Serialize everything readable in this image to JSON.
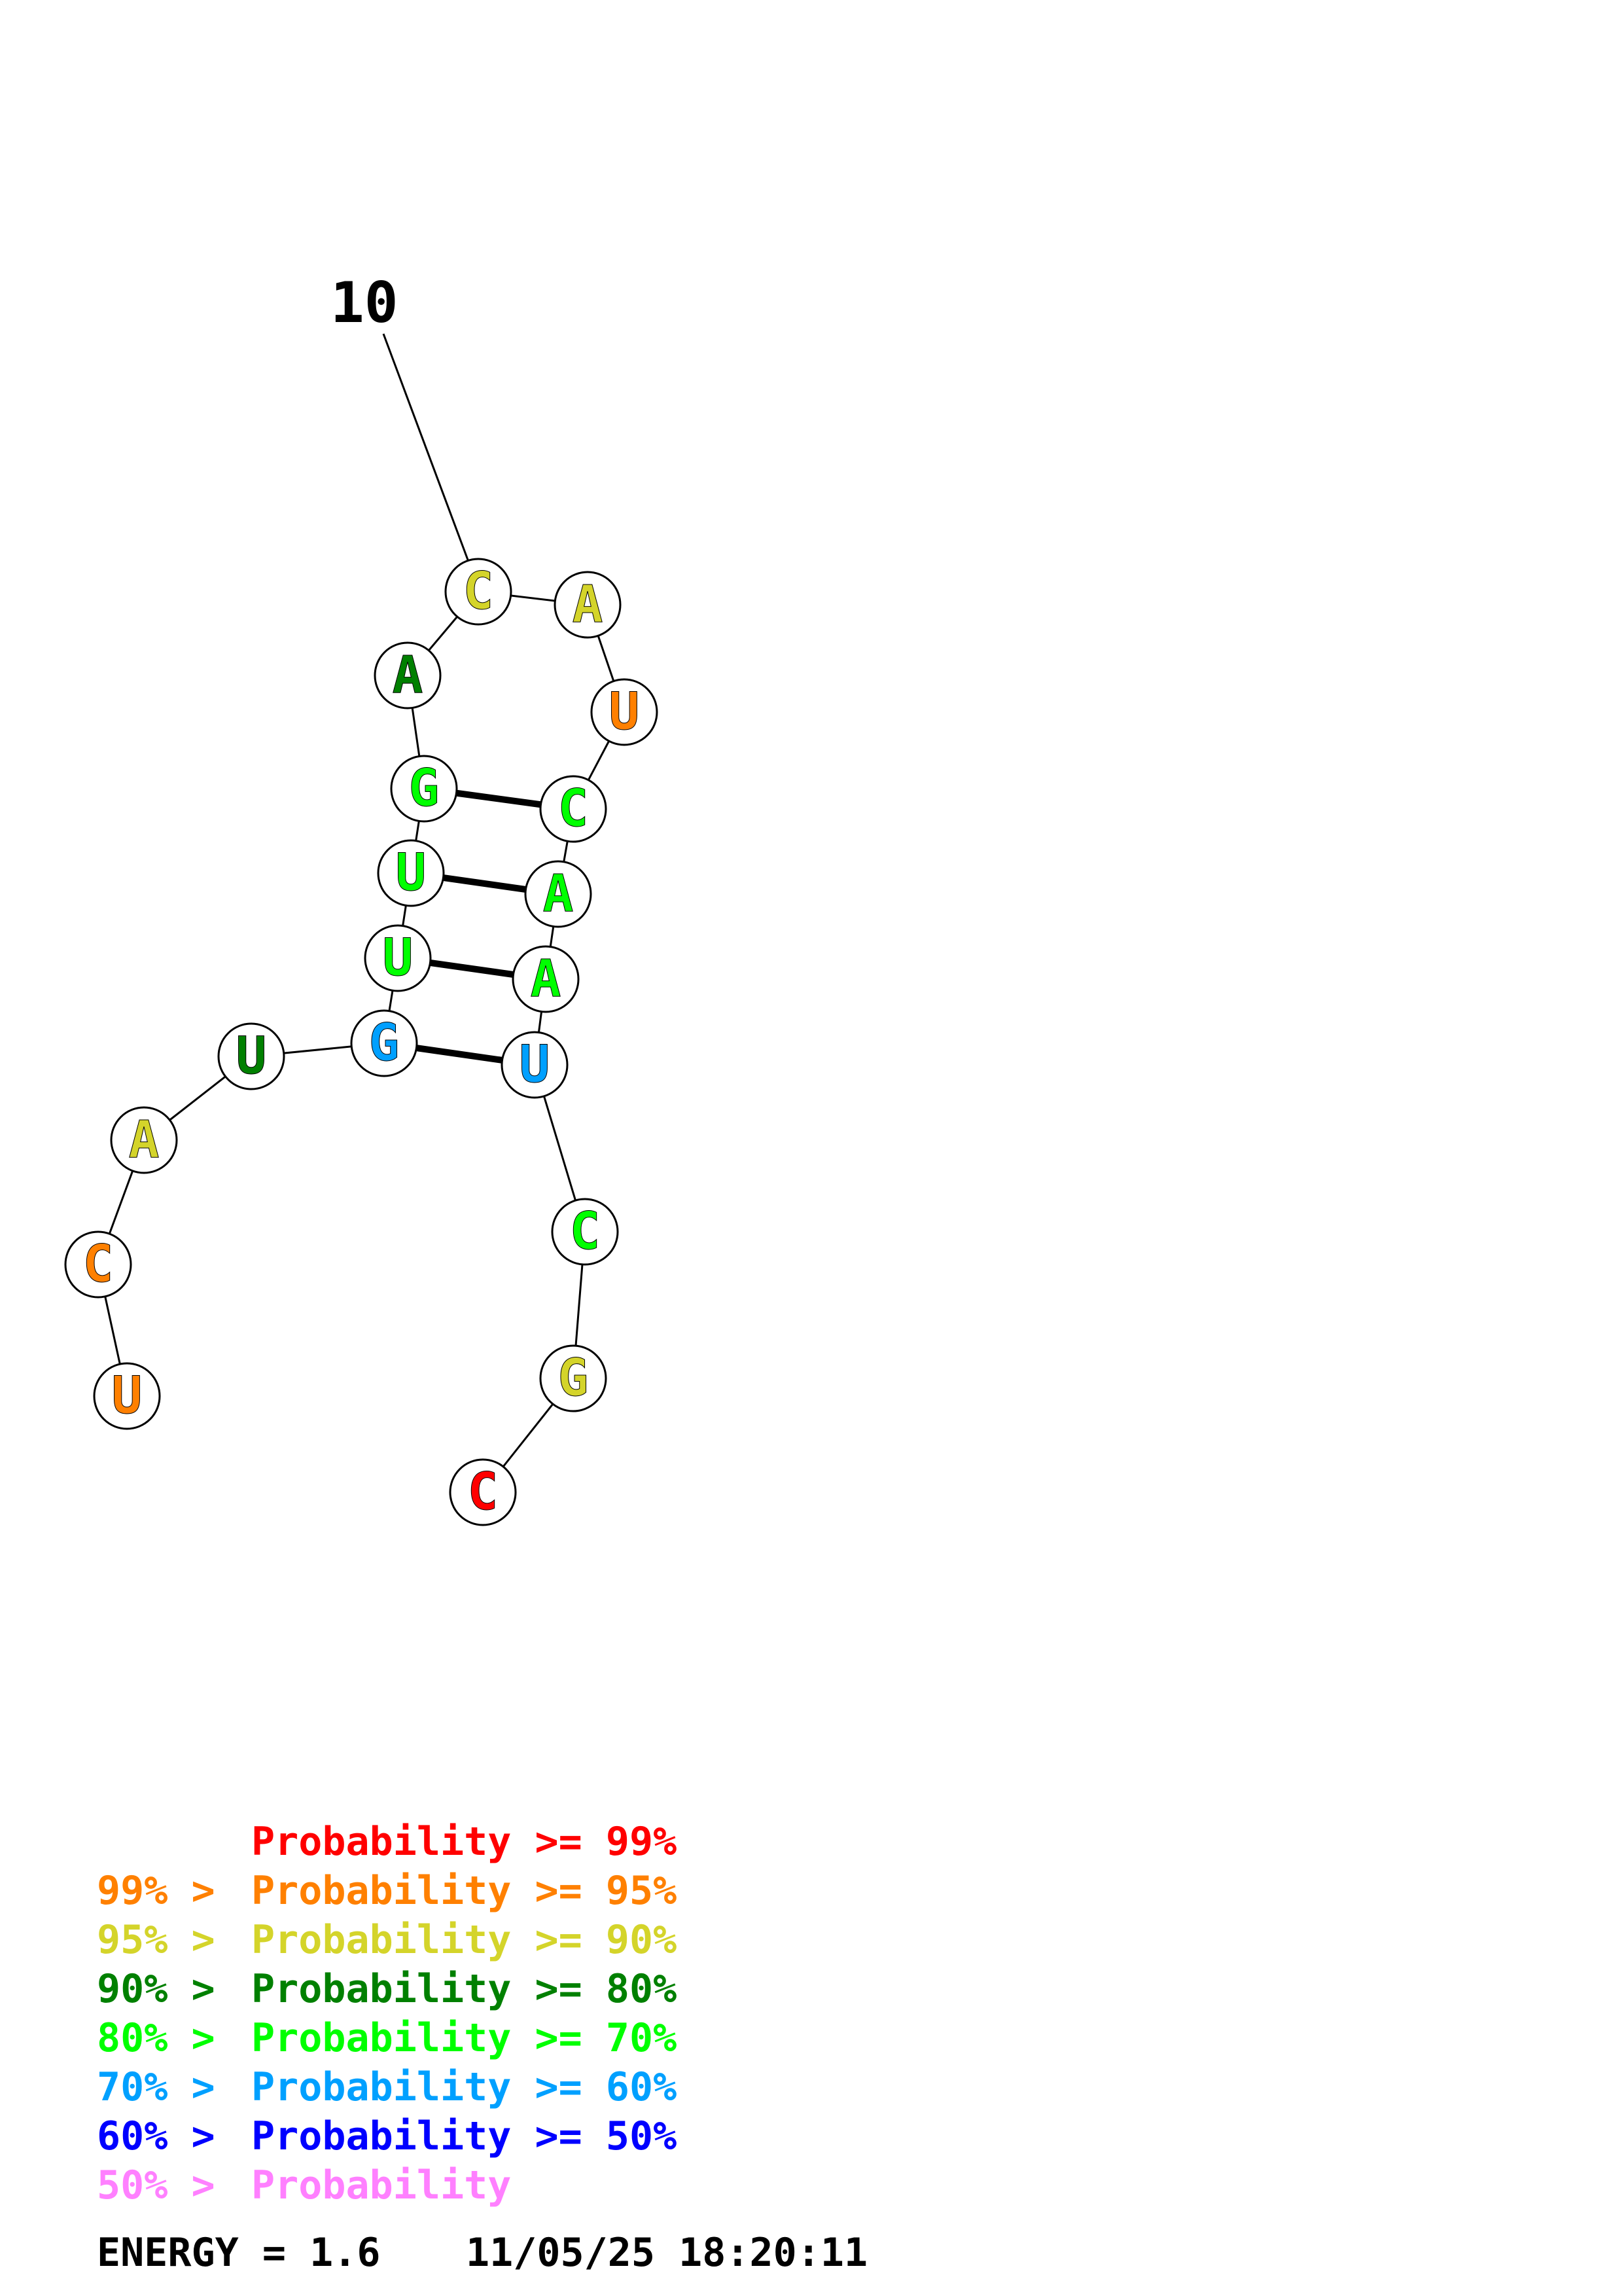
{
  "structure": {
    "position_label": "10",
    "nucleotides": [
      {
        "letter": "U",
        "prob_class": "orange"
      },
      {
        "letter": "C",
        "prob_class": "orange"
      },
      {
        "letter": "A",
        "prob_class": "yellow"
      },
      {
        "letter": "U",
        "prob_class": "darkgreen"
      },
      {
        "letter": "G",
        "prob_class": "blue"
      },
      {
        "letter": "U",
        "prob_class": "green"
      },
      {
        "letter": "U",
        "prob_class": "green"
      },
      {
        "letter": "G",
        "prob_class": "green"
      },
      {
        "letter": "A",
        "prob_class": "darkgreen"
      },
      {
        "letter": "C",
        "prob_class": "yellow"
      },
      {
        "letter": "A",
        "prob_class": "yellow"
      },
      {
        "letter": "U",
        "prob_class": "orange"
      },
      {
        "letter": "C",
        "prob_class": "green"
      },
      {
        "letter": "A",
        "prob_class": "green"
      },
      {
        "letter": "A",
        "prob_class": "green"
      },
      {
        "letter": "U",
        "prob_class": "blue"
      },
      {
        "letter": "C",
        "prob_class": "green"
      },
      {
        "letter": "G",
        "prob_class": "yellow"
      },
      {
        "letter": "C",
        "prob_class": "red"
      }
    ],
    "pairs": [
      [
        5,
        16
      ],
      [
        6,
        15
      ],
      [
        7,
        14
      ],
      [
        8,
        13
      ]
    ]
  },
  "colors": {
    "red": "#ff0000",
    "orange": "#ff8000",
    "yellow": "#d4d42a",
    "darkgreen": "#008000",
    "green": "#00ff00",
    "blue": "#00a0ff",
    "navy": "#0000ff",
    "pink": "#ff80ff"
  },
  "legend": [
    {
      "prefix": "",
      "range": "Probability >= 99%",
      "color": "red"
    },
    {
      "prefix": "99% > ",
      "range": "Probability >= 95%",
      "color": "orange"
    },
    {
      "prefix": "95% > ",
      "range": "Probability >= 90%",
      "color": "yellow"
    },
    {
      "prefix": "90% > ",
      "range": "Probability >= 80%",
      "color": "darkgreen"
    },
    {
      "prefix": "80% > ",
      "range": "Probability >= 70%",
      "color": "green"
    },
    {
      "prefix": "70% > ",
      "range": "Probability >= 60%",
      "color": "blue"
    },
    {
      "prefix": "60% > ",
      "range": "Probability >= 50%",
      "color": "navy"
    },
    {
      "prefix": "50% > ",
      "range": "Probability",
      "color": "pink"
    }
  ],
  "footer": {
    "energy_label": "ENERGY = 1.6",
    "timestamp": "11/05/25 18:20:11"
  }
}
